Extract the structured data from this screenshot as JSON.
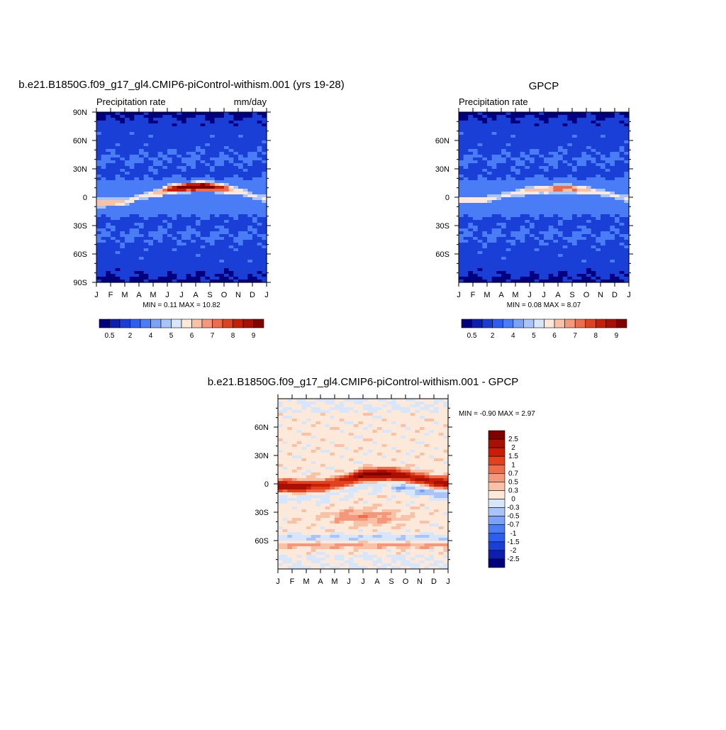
{
  "panels": {
    "model": {
      "title": "b.e21.B1850G.f09_g17_gl4.CMIP6-piControl-withism.001 (yrs 19-28)",
      "left_label": "Precipitation rate",
      "right_label": "mm/day",
      "stats": "MIN =   0.11 MAX =  10.82",
      "colorbar_labels": [
        "0.5",
        "2",
        "4",
        "5",
        "6",
        "7",
        "8",
        "9"
      ]
    },
    "obs": {
      "title": "GPCP",
      "left_label": "Precipitation rate",
      "right_label": "",
      "stats": "MIN =   0.08 MAX =   8.07",
      "colorbar_labels": [
        "0.5",
        "2",
        "4",
        "5",
        "6",
        "7",
        "8",
        "9"
      ]
    },
    "diff": {
      "title": "b.e21.B1850G.f09_g17_gl4.CMIP6-piControl-withism.001 - GPCP",
      "stats": "MIN =  -0.90 MAX =   2.97",
      "colorbar_labels": [
        "2.5",
        "2",
        "1.5",
        "1",
        "0.7",
        "0.5",
        "0.3",
        "0",
        "-0.3",
        "-0.5",
        "-0.7",
        "-1",
        "-1.5",
        "-2",
        "-2.5"
      ]
    }
  },
  "chart_data": [
    {
      "type": "heatmap",
      "title": "b.e21.B1850G.f09_g17_gl4.CMIP6-piControl-withism.001 (yrs 19-28)",
      "subtitle": "Precipitation rate",
      "units": "mm/day",
      "x_ticklabels": [
        "J",
        "F",
        "M",
        "A",
        "M",
        "J",
        "J",
        "A",
        "S",
        "O",
        "N",
        "D",
        "J"
      ],
      "y_ticklabels": [
        "90N",
        "60N",
        "30N",
        "0",
        "30S",
        "60S",
        "90S"
      ],
      "ylim": [
        -90,
        90
      ],
      "min": 0.11,
      "max": 10.82,
      "colorbar_levels": [
        0.5,
        2,
        4,
        5,
        6,
        7,
        8,
        9
      ],
      "colors": [
        "#00007f",
        "#0c1fb0",
        "#1a3fd6",
        "#2d5ef0",
        "#4a7cf5",
        "#7aa2f7",
        "#a9c4f9",
        "#d7e6fb",
        "#fde9d9",
        "#f9c2a6",
        "#f4977a",
        "#ec6c4c",
        "#e0411f",
        "#c81e06",
        "#a81004",
        "#800000"
      ],
      "itcz": {
        "peak_lat_by_month": [
          -6,
          -6,
          -5,
          0,
          3,
          8,
          10,
          11,
          11,
          9,
          6,
          2,
          -2
        ],
        "peak_value_by_month": [
          7,
          7,
          6,
          5,
          6,
          8,
          9.5,
          10.5,
          10,
          8,
          6,
          5,
          6
        ]
      }
    },
    {
      "type": "heatmap",
      "title": "GPCP",
      "subtitle": "Precipitation rate",
      "x_ticklabels": [
        "J",
        "F",
        "M",
        "A",
        "M",
        "J",
        "J",
        "A",
        "S",
        "O",
        "N",
        "D",
        "J"
      ],
      "y_ticklabels": [
        "60N",
        "30N",
        "0",
        "30S",
        "60S"
      ],
      "ylim": [
        -90,
        90
      ],
      "min": 0.08,
      "max": 8.07,
      "colorbar_levels": [
        0.5,
        2,
        4,
        5,
        6,
        7,
        8,
        9
      ],
      "colors": [
        "#00007f",
        "#0c1fb0",
        "#1a3fd6",
        "#2d5ef0",
        "#4a7cf5",
        "#7aa2f7",
        "#a9c4f9",
        "#d7e6fb",
        "#fde9d9",
        "#f9c2a6",
        "#f4977a",
        "#ec6c4c",
        "#e0411f",
        "#c81e06",
        "#a81004",
        "#800000"
      ],
      "itcz": {
        "peak_lat_by_month": [
          -3,
          -3,
          -2,
          1,
          4,
          7,
          8,
          9,
          9,
          7,
          5,
          2,
          -2
        ],
        "peak_value_by_month": [
          6,
          6,
          5.5,
          5,
          5.5,
          6.5,
          7,
          7.5,
          7.5,
          6.5,
          5.5,
          5,
          5.5
        ]
      }
    },
    {
      "type": "heatmap",
      "title": "b.e21.B1850G.f09_g17_gl4.CMIP6-piControl-withism.001 - GPCP",
      "x_ticklabels": [
        "J",
        "F",
        "M",
        "A",
        "M",
        "J",
        "J",
        "A",
        "S",
        "O",
        "N",
        "D",
        "J"
      ],
      "y_ticklabels": [
        "60N",
        "30N",
        "0",
        "30S",
        "60S"
      ],
      "ylim": [
        -90,
        90
      ],
      "min": -0.9,
      "max": 2.97,
      "colorbar_levels": [
        -2.5,
        -2,
        -1.5,
        -1,
        -0.7,
        -0.5,
        -0.3,
        0,
        0.3,
        0.5,
        0.7,
        1,
        1.5,
        2,
        2.5
      ],
      "colors": [
        "#00007f",
        "#0c1fb0",
        "#1a3fd6",
        "#2d5ef0",
        "#4a7cf5",
        "#7aa2f7",
        "#a9c4f9",
        "#d7e6fb",
        "#fde9d9",
        "#f9c2a6",
        "#f4977a",
        "#ec6c4c",
        "#e0411f",
        "#c81e06",
        "#a81004",
        "#800000"
      ],
      "itcz": {
        "peak_lat_by_month": [
          -2,
          -3,
          -3,
          -2,
          0,
          5,
          9,
          10,
          10,
          8,
          5,
          2,
          0
        ],
        "peak_value_by_month": [
          2.2,
          2.3,
          2.0,
          1.5,
          1.4,
          1.8,
          2.6,
          2.9,
          2.6,
          2.0,
          1.8,
          2.0,
          2.2
        ]
      }
    }
  ]
}
